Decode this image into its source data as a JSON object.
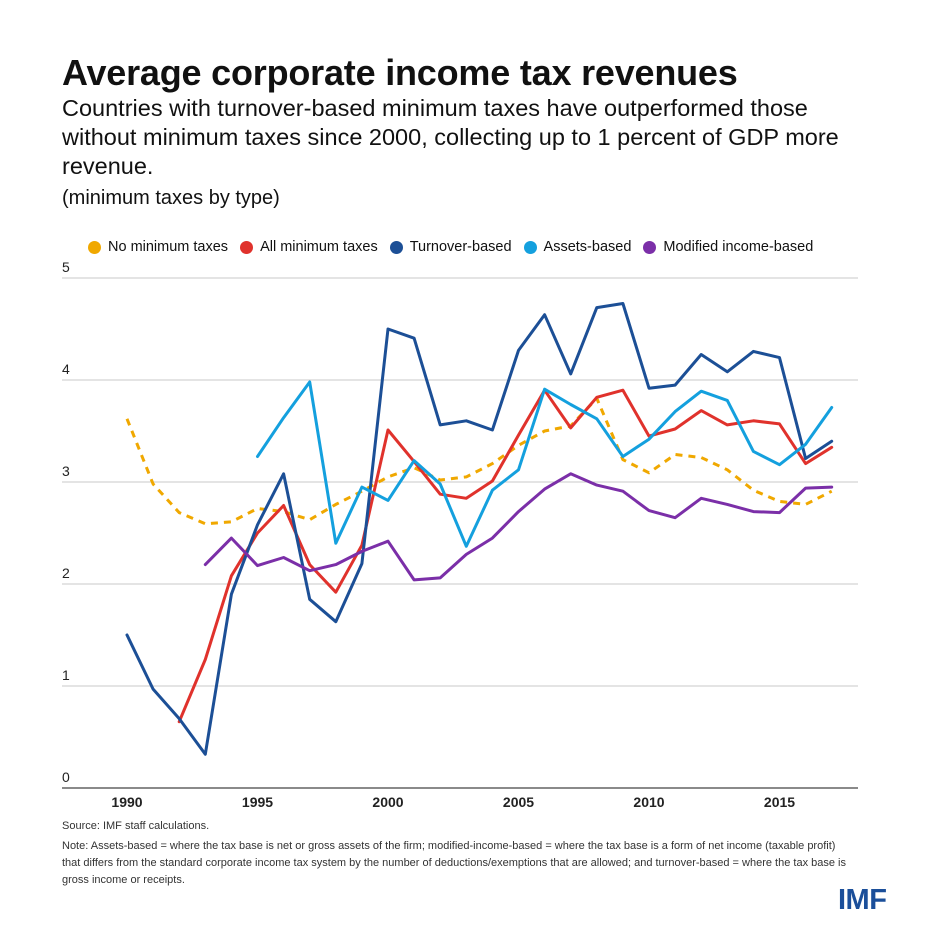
{
  "header": {
    "title": "Average corporate income tax revenues",
    "subtitle": "Countries with turnover-based minimum taxes have outperformed those without minimum taxes since 2000, collecting up to 1 percent of GDP more revenue.",
    "unit": "(minimum taxes by type)"
  },
  "footer": {
    "source": "Source: IMF staff calculations.",
    "note": "Note: Assets-based = where the tax base is net or gross assets of the firm; modified-income-based = where the tax base is a form of net income (taxable profit) that differs from the standard corporate income tax system by the number of deductions/exemptions that are allowed; and turnover-based = where the tax base is gross income or receipts.",
    "logo": "IMF"
  },
  "chart_data": {
    "type": "line",
    "title": "Average corporate income tax revenues",
    "xlabel": "",
    "ylabel": "",
    "xlim": [
      1989,
      2018
    ],
    "ylim": [
      0,
      5
    ],
    "x_ticks": [
      1990,
      1995,
      2000,
      2005,
      2010,
      2015
    ],
    "y_ticks": [
      0,
      1,
      2,
      3,
      4,
      5
    ],
    "grid": true,
    "legend_position": "top",
    "series": [
      {
        "name": "No minimum taxes",
        "color": "#f0a800",
        "dashed": true,
        "points": [
          [
            1990,
            3.62
          ],
          [
            1991,
            2.98
          ],
          [
            1992,
            2.7
          ],
          [
            1993,
            2.59
          ],
          [
            1994,
            2.61
          ],
          [
            1995,
            2.74
          ],
          [
            1996,
            2.71
          ],
          [
            1997,
            2.63
          ],
          [
            1998,
            2.78
          ],
          [
            1999,
            2.91
          ],
          [
            2000,
            3.05
          ],
          [
            2001,
            3.14
          ],
          [
            2002,
            3.02
          ],
          [
            2003,
            3.05
          ],
          [
            2004,
            3.18
          ],
          [
            2005,
            3.36
          ],
          [
            2006,
            3.5
          ],
          [
            2007,
            3.55
          ],
          [
            2008,
            3.82
          ],
          [
            2009,
            3.22
          ],
          [
            2010,
            3.09
          ],
          [
            2011,
            3.27
          ],
          [
            2012,
            3.24
          ],
          [
            2013,
            3.12
          ],
          [
            2014,
            2.92
          ],
          [
            2015,
            2.81
          ],
          [
            2016,
            2.78
          ],
          [
            2017,
            2.91
          ]
        ]
      },
      {
        "name": "All minimum taxes",
        "color": "#e0322c",
        "dashed": false,
        "points": [
          [
            1992,
            0.65
          ],
          [
            1993,
            1.26
          ],
          [
            1994,
            2.08
          ],
          [
            1995,
            2.5
          ],
          [
            1996,
            2.77
          ],
          [
            1997,
            2.19
          ],
          [
            1998,
            1.92
          ],
          [
            1999,
            2.38
          ],
          [
            2000,
            3.51
          ],
          [
            2001,
            3.2
          ],
          [
            2002,
            2.88
          ],
          [
            2003,
            2.84
          ],
          [
            2004,
            3.01
          ],
          [
            2005,
            3.46
          ],
          [
            2006,
            3.9
          ],
          [
            2007,
            3.53
          ],
          [
            2008,
            3.83
          ],
          [
            2009,
            3.9
          ],
          [
            2010,
            3.45
          ],
          [
            2011,
            3.52
          ],
          [
            2012,
            3.7
          ],
          [
            2013,
            3.56
          ],
          [
            2014,
            3.6
          ],
          [
            2015,
            3.57
          ],
          [
            2016,
            3.18
          ],
          [
            2017,
            3.34
          ]
        ]
      },
      {
        "name": "Turnover-based",
        "color": "#1c4f96",
        "dashed": false,
        "points": [
          [
            1990,
            1.5
          ],
          [
            1991,
            0.97
          ],
          [
            1992,
            0.68
          ],
          [
            1993,
            0.33
          ],
          [
            1994,
            1.9
          ],
          [
            1995,
            2.58
          ],
          [
            1996,
            3.08
          ],
          [
            1997,
            1.85
          ],
          [
            1998,
            1.63
          ],
          [
            1999,
            2.2
          ],
          [
            2000,
            4.5
          ],
          [
            2001,
            4.41
          ],
          [
            2002,
            3.56
          ],
          [
            2003,
            3.6
          ],
          [
            2004,
            3.51
          ],
          [
            2005,
            4.29
          ],
          [
            2006,
            4.64
          ],
          [
            2007,
            4.06
          ],
          [
            2008,
            4.71
          ],
          [
            2009,
            4.75
          ],
          [
            2010,
            3.92
          ],
          [
            2011,
            3.95
          ],
          [
            2012,
            4.25
          ],
          [
            2013,
            4.08
          ],
          [
            2014,
            4.28
          ],
          [
            2015,
            4.22
          ],
          [
            2016,
            3.23
          ],
          [
            2017,
            3.4
          ]
        ]
      },
      {
        "name": "Assets-based",
        "color": "#14a0de",
        "dashed": false,
        "points": [
          [
            1995,
            3.25
          ],
          [
            1996,
            3.63
          ],
          [
            1997,
            3.98
          ],
          [
            1998,
            2.4
          ],
          [
            1999,
            2.95
          ],
          [
            2000,
            2.82
          ],
          [
            2001,
            3.21
          ],
          [
            2002,
            2.98
          ],
          [
            2003,
            2.37
          ],
          [
            2004,
            2.92
          ],
          [
            2005,
            3.12
          ],
          [
            2006,
            3.91
          ],
          [
            2007,
            3.76
          ],
          [
            2008,
            3.62
          ],
          [
            2009,
            3.25
          ],
          [
            2010,
            3.42
          ],
          [
            2011,
            3.69
          ],
          [
            2012,
            3.89
          ],
          [
            2013,
            3.8
          ],
          [
            2014,
            3.3
          ],
          [
            2015,
            3.17
          ],
          [
            2016,
            3.37
          ],
          [
            2017,
            3.73
          ]
        ]
      },
      {
        "name": "Modified income-based",
        "color": "#7b2fa8",
        "dashed": false,
        "points": [
          [
            1993,
            2.19
          ],
          [
            1994,
            2.45
          ],
          [
            1995,
            2.18
          ],
          [
            1996,
            2.26
          ],
          [
            1997,
            2.13
          ],
          [
            1998,
            2.19
          ],
          [
            1999,
            2.32
          ],
          [
            2000,
            2.42
          ],
          [
            2001,
            2.04
          ],
          [
            2002,
            2.06
          ],
          [
            2003,
            2.29
          ],
          [
            2004,
            2.45
          ],
          [
            2005,
            2.71
          ],
          [
            2006,
            2.93
          ],
          [
            2007,
            3.08
          ],
          [
            2008,
            2.97
          ],
          [
            2009,
            2.91
          ],
          [
            2010,
            2.72
          ],
          [
            2011,
            2.65
          ],
          [
            2012,
            2.84
          ],
          [
            2013,
            2.78
          ],
          [
            2014,
            2.71
          ],
          [
            2015,
            2.7
          ],
          [
            2016,
            2.94
          ],
          [
            2017,
            2.95
          ]
        ]
      }
    ]
  }
}
